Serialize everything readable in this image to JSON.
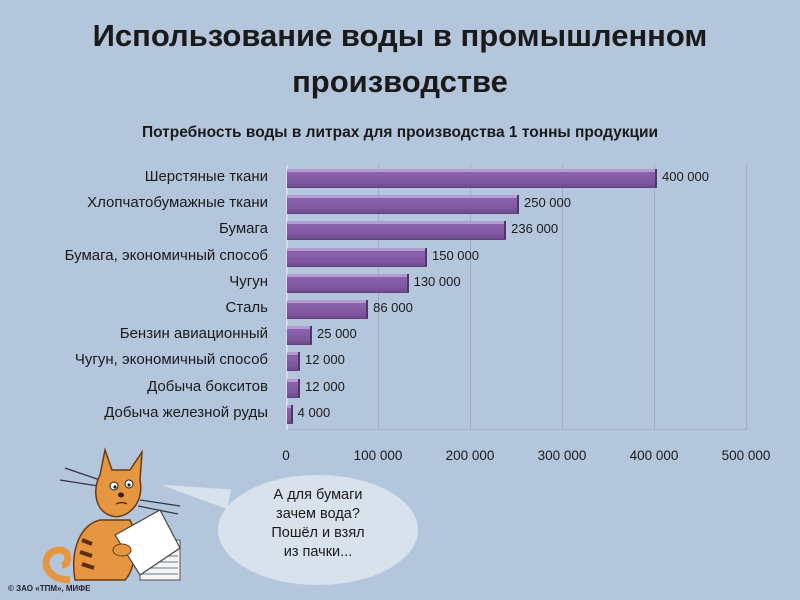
{
  "header": {
    "title_line1": "Использование воды в промышленном",
    "title_line2": "производстве",
    "subtitle": "Потребность воды в литрах для производства 1 тонны продукции"
  },
  "chart_data": {
    "type": "bar",
    "orientation": "horizontal",
    "title": "Использование воды в промышленном производстве",
    "subtitle": "Потребность воды в литрах для производства 1 тонны продукции",
    "categories": [
      "Шерстяные ткани",
      "Хлопчатобумажные ткани",
      "Бумага",
      "Бумага, экономичный способ",
      "Чугун",
      "Сталь",
      "Бензин авиационный",
      "Чугун, экономичный способ",
      "Добыча бокситов",
      "Добыча железной руды"
    ],
    "values": [
      400000,
      250000,
      236000,
      150000,
      130000,
      86000,
      25000,
      12000,
      12000,
      4000
    ],
    "value_labels": [
      "400 000",
      "250 000",
      "236 000",
      "150 000",
      "130 000",
      "86 000",
      "25 000",
      "12 000",
      "12 000",
      "4 000"
    ],
    "xlabel": "",
    "ylabel": "",
    "xlim": [
      0,
      500000
    ],
    "x_ticks": [
      "0",
      "100 000",
      "200 000",
      "300 000",
      "400 000",
      "500 000"
    ],
    "grid": true,
    "legend": "none",
    "bar_color": "#8a62ab"
  },
  "illustration": {
    "speech_bubble_lines": [
      "А для бумаги",
      "зачем вода?",
      "Пошёл и взял",
      "из пачки..."
    ],
    "credit": "© ЗАО «ТПМ», МИФЕ"
  }
}
